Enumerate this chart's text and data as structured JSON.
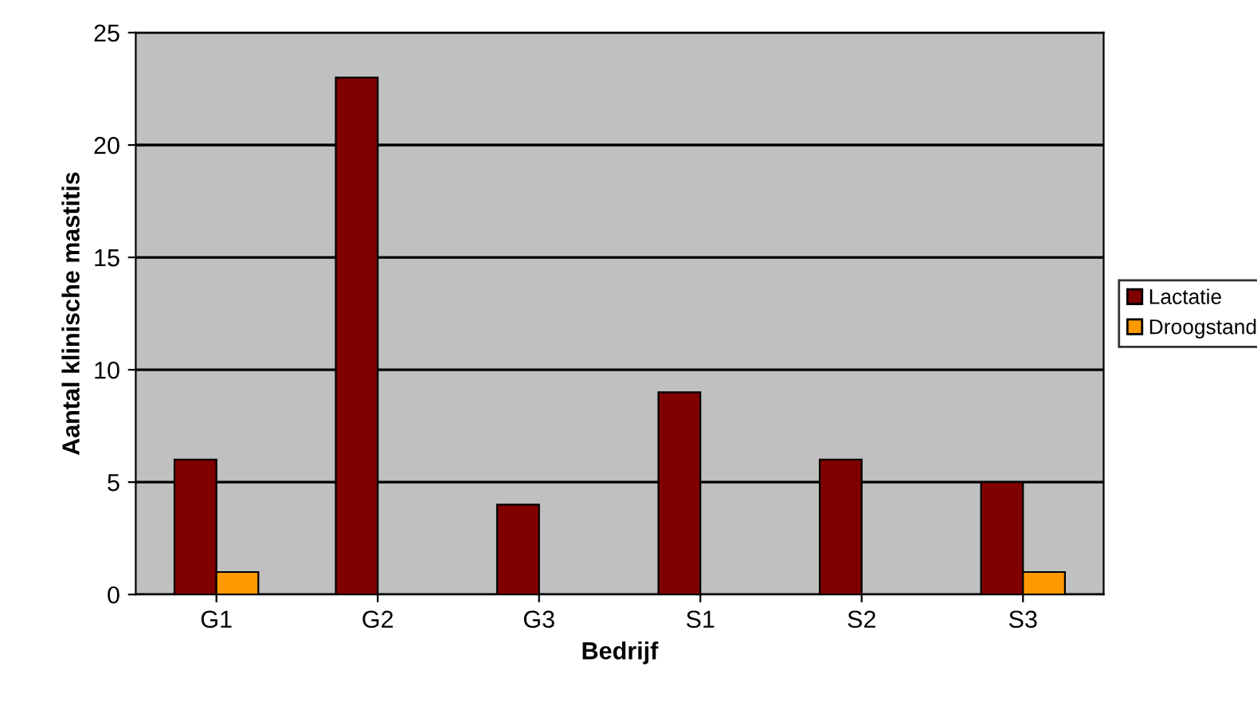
{
  "chart_data": {
    "type": "bar",
    "xlabel": "Bedrijf",
    "ylabel": "Aantal klinische mastitis",
    "categories": [
      "G1",
      "G2",
      "G3",
      "S1",
      "S2",
      "S3"
    ],
    "series": [
      {
        "name": "Lactatie",
        "color": "#800000",
        "values": [
          6,
          23,
          4,
          9,
          6,
          5
        ]
      },
      {
        "name": "Droogstand",
        "color": "#ff9900",
        "values": [
          1,
          null,
          null,
          null,
          null,
          1
        ]
      }
    ],
    "ylim": [
      0,
      25
    ],
    "yticks": [
      0,
      5,
      10,
      15,
      20,
      25
    ],
    "grid": "y",
    "legend": "right"
  }
}
